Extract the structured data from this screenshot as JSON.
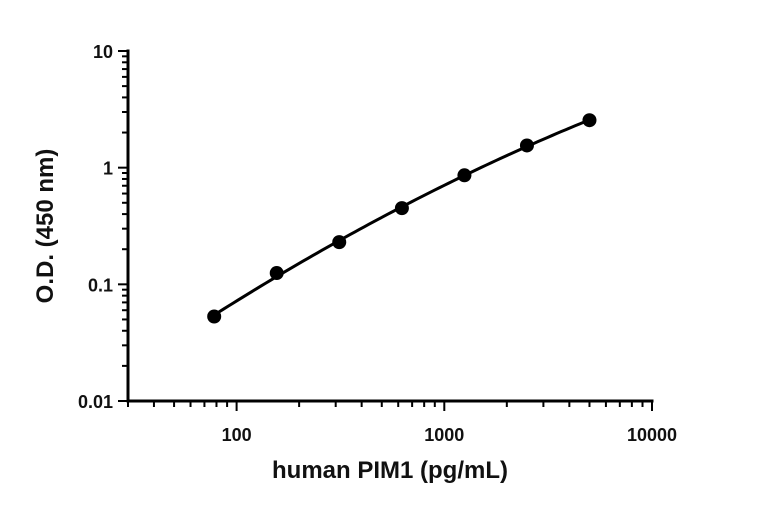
{
  "chart_data": {
    "type": "scatter",
    "title": "",
    "xlabel": "human PIM1 (pg/mL)",
    "ylabel": "O.D. (450 nm)",
    "x_scale": "log",
    "y_scale": "log",
    "xlim": [
      30,
      10000
    ],
    "ylim": [
      0.01,
      10
    ],
    "x_ticks": [
      {
        "value": 100,
        "label": "100"
      },
      {
        "value": 1000,
        "label": "1000"
      },
      {
        "value": 10000,
        "label": "10000"
      }
    ],
    "y_ticks": [
      {
        "value": 0.01,
        "label": "0.01"
      },
      {
        "value": 0.1,
        "label": "0.1"
      },
      {
        "value": 1,
        "label": "1"
      },
      {
        "value": 10,
        "label": "10"
      }
    ],
    "grid": false,
    "legend": "none",
    "series": [
      {
        "x": [
          78,
          156,
          312,
          625,
          1250,
          2500,
          5000
        ],
        "y": [
          0.053,
          0.125,
          0.23,
          0.45,
          0.86,
          1.55,
          2.55
        ],
        "marker": "filled-circle",
        "fit_line": true,
        "color": "#000000"
      }
    ]
  }
}
